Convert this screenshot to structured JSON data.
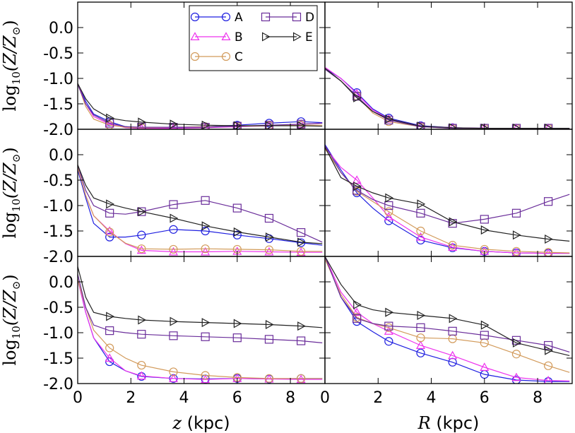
{
  "chart_data": {
    "type": "line",
    "layout": {
      "rows": 3,
      "cols": 2
    },
    "xlim": [
      0,
      9.3
    ],
    "ylim": [
      -2.0,
      0.5
    ],
    "x_ticks": [
      "0",
      "2",
      "4",
      "6",
      "8"
    ],
    "x_tick_values": [
      0,
      2,
      4,
      6,
      8
    ],
    "y_ticks": [
      "0.0",
      "-0.5",
      "-1.0",
      "-1.5",
      "-2.0"
    ],
    "y_tick_values": [
      0.0,
      -0.5,
      -1.0,
      -1.5,
      -2.0
    ],
    "ylabel_main": "log",
    "ylabel_sub": "10",
    "ylabel_rest": "(Z/Z",
    "ylabel_sun": "⊙",
    "ylabel_close": ")",
    "xlabels": [
      {
        "var": "z",
        "unit": " (kpc)"
      },
      {
        "var": "R",
        "unit": " (kpc)"
      }
    ],
    "legend": {
      "location": "upper center (top-left panel)",
      "entries": [
        {
          "label": "A",
          "color": "#1f1fe0",
          "marker": "circle"
        },
        {
          "label": "B",
          "color": "#ee33ee",
          "marker": "triangle-up"
        },
        {
          "label": "C",
          "color": "#d29a5a",
          "marker": "circle"
        },
        {
          "label": "D",
          "color": "#6a2d9a",
          "marker": "square"
        },
        {
          "label": "E",
          "color": "#222222",
          "marker": "triangle-right"
        }
      ]
    },
    "panels": [
      {
        "id": "r1c1",
        "series": [
          {
            "name": "A",
            "x": [
              0,
              0.3,
              0.6,
              1.2,
              1.8,
              2.4,
              3.6,
              4.8,
              6.0,
              7.2,
              8.4,
              9.2
            ],
            "y": [
              -1.1,
              -1.45,
              -1.7,
              -1.85,
              -1.95,
              -1.97,
              -1.97,
              -1.95,
              -1.92,
              -1.88,
              -1.85,
              -1.87
            ]
          },
          {
            "name": "B",
            "x": [
              0,
              0.3,
              0.6,
              1.2,
              1.8,
              2.4,
              3.6,
              4.8,
              6.0,
              7.2,
              8.4,
              9.2
            ],
            "y": [
              -1.1,
              -1.5,
              -1.75,
              -1.9,
              -1.97,
              -1.98,
              -1.98,
              -1.97,
              -1.95,
              -1.93,
              -1.9,
              -1.88
            ]
          },
          {
            "name": "C",
            "x": [
              0,
              0.3,
              0.6,
              1.2,
              1.8,
              2.4,
              3.6,
              4.8,
              6.0,
              7.2,
              8.4,
              9.2
            ],
            "y": [
              -1.1,
              -1.55,
              -1.8,
              -1.92,
              -1.96,
              -1.97,
              -1.96,
              -1.95,
              -1.94,
              -1.93,
              -1.92,
              -1.92
            ]
          },
          {
            "name": "D",
            "x": [
              0,
              0.3,
              0.6,
              1.2,
              1.8,
              2.4,
              3.6,
              4.8,
              6.0,
              7.2,
              8.4,
              9.2
            ],
            "y": [
              -1.12,
              -1.5,
              -1.72,
              -1.88,
              -1.95,
              -1.96,
              -1.96,
              -1.96,
              -1.94,
              -1.92,
              -1.9,
              -1.88
            ]
          },
          {
            "name": "E",
            "x": [
              0,
              0.3,
              0.6,
              1.2,
              1.8,
              2.4,
              3.6,
              4.8,
              6.0,
              7.2,
              8.4,
              9.2
            ],
            "y": [
              -1.1,
              -1.4,
              -1.6,
              -1.78,
              -1.83,
              -1.86,
              -1.9,
              -1.92,
              -1.93,
              -1.93,
              -1.93,
              -1.94
            ]
          }
        ]
      },
      {
        "id": "r1c2",
        "series": [
          {
            "name": "A",
            "x": [
              0,
              0.6,
              1.2,
              1.8,
              2.4,
              3.6,
              4.8,
              6.0,
              7.2,
              8.4,
              9.2
            ],
            "y": [
              -0.8,
              -1.0,
              -1.28,
              -1.6,
              -1.78,
              -1.93,
              -1.97,
              -1.98,
              -1.98,
              -1.98,
              -1.98
            ]
          },
          {
            "name": "B",
            "x": [
              0,
              0.6,
              1.2,
              1.8,
              2.4,
              3.6,
              4.8,
              6.0,
              7.2,
              8.4,
              9.2
            ],
            "y": [
              -0.78,
              -1.0,
              -1.3,
              -1.62,
              -1.8,
              -1.94,
              -1.97,
              -1.98,
              -1.98,
              -1.98,
              -1.98
            ]
          },
          {
            "name": "C",
            "x": [
              0,
              0.6,
              1.2,
              1.8,
              2.4,
              3.6,
              4.8,
              6.0,
              7.2,
              8.4,
              9.2
            ],
            "y": [
              -0.8,
              -1.05,
              -1.35,
              -1.68,
              -1.85,
              -1.95,
              -1.98,
              -1.98,
              -1.98,
              -1.98,
              -1.98
            ]
          },
          {
            "name": "D",
            "x": [
              0,
              0.6,
              1.2,
              1.8,
              2.4,
              3.6,
              4.8,
              6.0,
              7.2,
              8.4,
              9.2
            ],
            "y": [
              -0.82,
              -1.05,
              -1.35,
              -1.65,
              -1.82,
              -1.95,
              -1.98,
              -1.98,
              -1.98,
              -1.98,
              -1.98
            ]
          },
          {
            "name": "E",
            "x": [
              0,
              0.6,
              1.2,
              1.8,
              2.4,
              3.6,
              4.8,
              6.0,
              7.2,
              8.4,
              9.2
            ],
            "y": [
              -0.8,
              -1.05,
              -1.38,
              -1.65,
              -1.8,
              -1.94,
              -1.97,
              -1.98,
              -1.98,
              -1.98,
              -1.98
            ]
          }
        ]
      },
      {
        "id": "r2c1",
        "series": [
          {
            "name": "A",
            "x": [
              0,
              0.3,
              0.6,
              1.2,
              1.8,
              2.4,
              3.6,
              4.8,
              6.0,
              7.2,
              8.4,
              9.2
            ],
            "y": [
              -0.3,
              -0.85,
              -1.35,
              -1.62,
              -1.62,
              -1.58,
              -1.47,
              -1.5,
              -1.58,
              -1.65,
              -1.73,
              -1.78
            ]
          },
          {
            "name": "B",
            "x": [
              0,
              0.3,
              0.6,
              1.2,
              1.8,
              2.4,
              3.6,
              4.8,
              6.0,
              7.2,
              8.4,
              9.2
            ],
            "y": [
              -0.25,
              -0.8,
              -1.2,
              -1.5,
              -1.75,
              -1.88,
              -1.91,
              -1.91,
              -1.9,
              -1.91,
              -1.92,
              -1.92
            ]
          },
          {
            "name": "C",
            "x": [
              0,
              0.3,
              0.6,
              1.2,
              1.8,
              2.4,
              3.6,
              4.8,
              6.0,
              7.2,
              8.4,
              9.2
            ],
            "y": [
              -0.25,
              -0.8,
              -1.2,
              -1.52,
              -1.74,
              -1.85,
              -1.86,
              -1.85,
              -1.86,
              -1.87,
              -1.9,
              -1.9
            ]
          },
          {
            "name": "D",
            "x": [
              0,
              0.3,
              0.6,
              1.2,
              1.8,
              2.4,
              3.6,
              4.8,
              6.0,
              7.2,
              8.4,
              9.2
            ],
            "y": [
              -0.2,
              -0.7,
              -1.0,
              -1.15,
              -1.17,
              -1.12,
              -0.98,
              -0.9,
              -1.05,
              -1.25,
              -1.53,
              -1.72
            ]
          },
          {
            "name": "E",
            "x": [
              0,
              0.3,
              0.6,
              1.2,
              1.8,
              2.4,
              3.6,
              4.8,
              6.0,
              7.2,
              8.4,
              9.2
            ],
            "y": [
              -0.2,
              -0.6,
              -0.85,
              -0.97,
              -1.05,
              -1.12,
              -1.25,
              -1.4,
              -1.52,
              -1.62,
              -1.72,
              -1.75
            ]
          }
        ]
      },
      {
        "id": "r2c2",
        "series": [
          {
            "name": "A",
            "x": [
              0,
              0.6,
              1.2,
              1.8,
              2.4,
              3.6,
              4.8,
              6.0,
              7.2,
              8.4,
              9.2
            ],
            "y": [
              0.2,
              -0.3,
              -0.75,
              -1.05,
              -1.3,
              -1.68,
              -1.83,
              -1.9,
              -1.93,
              -1.94,
              -1.94
            ]
          },
          {
            "name": "B",
            "x": [
              0,
              0.6,
              1.2,
              1.8,
              2.4,
              3.6,
              4.8,
              6.0,
              7.2,
              8.4,
              9.2
            ],
            "y": [
              0.15,
              -0.25,
              -0.5,
              -0.85,
              -1.22,
              -1.62,
              -1.82,
              -1.9,
              -1.93,
              -1.94,
              -1.94
            ]
          },
          {
            "name": "C",
            "x": [
              0,
              0.6,
              1.2,
              1.8,
              2.4,
              3.6,
              4.8,
              6.0,
              7.2,
              8.4,
              9.2
            ],
            "y": [
              0.12,
              -0.35,
              -0.72,
              -0.92,
              -1.12,
              -1.5,
              -1.78,
              -1.86,
              -1.9,
              -1.92,
              -1.93
            ]
          },
          {
            "name": "D",
            "x": [
              0,
              0.6,
              1.2,
              1.8,
              2.4,
              3.6,
              4.8,
              6.0,
              7.2,
              8.4,
              9.2
            ],
            "y": [
              0.18,
              -0.35,
              -0.7,
              -0.88,
              -1.0,
              -1.15,
              -1.35,
              -1.27,
              -1.15,
              -0.92,
              -0.78
            ]
          },
          {
            "name": "E",
            "x": [
              0,
              0.6,
              1.2,
              1.8,
              2.4,
              3.6,
              4.8,
              6.0,
              7.2,
              8.4,
              9.2
            ],
            "y": [
              0.15,
              -0.45,
              -0.62,
              -0.75,
              -0.85,
              -0.97,
              -1.32,
              -1.48,
              -1.58,
              -1.66,
              -1.7
            ]
          }
        ]
      },
      {
        "id": "r3c1",
        "series": [
          {
            "name": "A",
            "x": [
              0,
              0.3,
              0.6,
              1.2,
              1.8,
              2.4,
              3.6,
              4.8,
              6.0,
              7.2,
              8.4,
              9.2
            ],
            "y": [
              0.05,
              -0.6,
              -1.1,
              -1.57,
              -1.75,
              -1.86,
              -1.9,
              -1.91,
              -1.9,
              -1.91,
              -1.9,
              -1.9
            ]
          },
          {
            "name": "B",
            "x": [
              0,
              0.3,
              0.6,
              1.2,
              1.8,
              2.4,
              3.6,
              4.8,
              6.0,
              7.2,
              8.4,
              9.2
            ],
            "y": [
              0.05,
              -0.6,
              -1.1,
              -1.5,
              -1.75,
              -1.85,
              -1.9,
              -1.92,
              -1.9,
              -1.91,
              -1.92,
              -1.92
            ]
          },
          {
            "name": "C",
            "x": [
              0,
              0.3,
              0.6,
              1.2,
              1.8,
              2.4,
              3.6,
              4.8,
              6.0,
              7.2,
              8.4,
              9.2
            ],
            "y": [
              0.05,
              -0.5,
              -0.95,
              -1.3,
              -1.5,
              -1.64,
              -1.77,
              -1.84,
              -1.88,
              -1.9,
              -1.9,
              -1.9
            ]
          },
          {
            "name": "D",
            "x": [
              0,
              0.3,
              0.6,
              1.2,
              1.8,
              2.4,
              3.6,
              4.8,
              6.0,
              7.2,
              8.4,
              9.2
            ],
            "y": [
              0.15,
              -0.5,
              -0.85,
              -0.96,
              -1.0,
              -1.03,
              -1.06,
              -1.08,
              -1.1,
              -1.13,
              -1.16,
              -1.2
            ]
          },
          {
            "name": "E",
            "x": [
              0,
              0.3,
              0.6,
              1.2,
              1.8,
              2.4,
              3.6,
              4.8,
              6.0,
              7.2,
              8.4,
              9.2
            ],
            "y": [
              0.3,
              -0.3,
              -0.6,
              -0.68,
              -0.72,
              -0.75,
              -0.78,
              -0.8,
              -0.82,
              -0.84,
              -0.87,
              -0.9
            ]
          }
        ]
      },
      {
        "id": "r3c2",
        "series": [
          {
            "name": "A",
            "x": [
              0,
              0.6,
              1.2,
              1.8,
              2.4,
              3.6,
              4.8,
              6.0,
              7.2,
              8.4,
              9.2
            ],
            "y": [
              0.5,
              -0.3,
              -0.78,
              -0.98,
              -1.17,
              -1.4,
              -1.58,
              -1.82,
              -1.93,
              -1.96,
              -1.96
            ]
          },
          {
            "name": "B",
            "x": [
              0,
              0.6,
              1.2,
              1.8,
              2.4,
              3.6,
              4.8,
              6.0,
              7.2,
              8.4,
              9.2
            ],
            "y": [
              0.5,
              -0.2,
              -0.6,
              -0.82,
              -0.97,
              -1.25,
              -1.45,
              -1.68,
              -1.88,
              -1.94,
              -1.95
            ]
          },
          {
            "name": "C",
            "x": [
              0,
              0.6,
              1.2,
              1.8,
              2.4,
              3.6,
              4.8,
              6.0,
              7.2,
              8.4,
              9.2
            ],
            "y": [
              0.45,
              -0.25,
              -0.7,
              -0.82,
              -0.9,
              -1.1,
              -1.12,
              -1.2,
              -1.42,
              -1.65,
              -1.78
            ]
          },
          {
            "name": "D",
            "x": [
              0,
              0.6,
              1.2,
              1.8,
              2.4,
              3.6,
              4.8,
              6.0,
              7.2,
              8.4,
              9.2
            ],
            "y": [
              0.5,
              -0.3,
              -0.72,
              -0.82,
              -0.87,
              -0.9,
              -0.97,
              -1.05,
              -1.15,
              -1.25,
              -1.38
            ]
          },
          {
            "name": "E",
            "x": [
              0,
              0.6,
              1.2,
              1.8,
              2.4,
              3.6,
              4.8,
              6.0,
              7.2,
              8.4,
              9.2
            ],
            "y": [
              0.5,
              -0.05,
              -0.45,
              -0.55,
              -0.6,
              -0.66,
              -0.72,
              -0.85,
              -1.2,
              -1.35,
              -1.45
            ]
          }
        ]
      }
    ]
  }
}
